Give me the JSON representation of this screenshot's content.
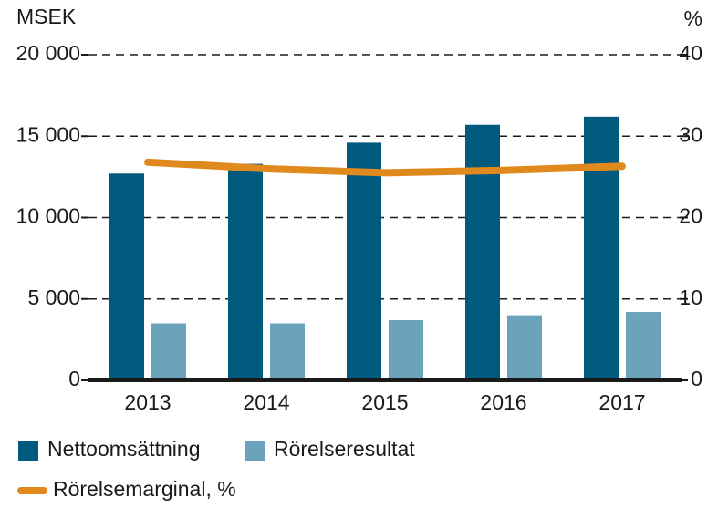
{
  "chart_data": {
    "type": "bar",
    "y_label": "MSEK",
    "y2_label": "%",
    "categories": [
      "2013",
      "2014",
      "2015",
      "2016",
      "2017"
    ],
    "series": [
      {
        "name": "Nettoomsättning",
        "color": "#005a7e",
        "values": [
          12700,
          13300,
          14600,
          15700,
          16200
        ]
      },
      {
        "name": "Rörelseresultat",
        "color": "#6ba3bd",
        "values": [
          3500,
          3500,
          3700,
          4000,
          4200
        ]
      },
      {
        "name": "Rörelsemarginal, %",
        "color": "#e08a1e",
        "type": "line",
        "axis": "y2",
        "values": [
          26.8,
          26.0,
          25.5,
          25.8,
          26.3
        ]
      }
    ],
    "ylim": [
      0,
      20000
    ],
    "yticks": [
      0,
      {
        "value": 5000,
        "label": "5 000"
      },
      {
        "value": 10000,
        "label": "10 000"
      },
      {
        "value": 15000,
        "label": "15 000"
      },
      {
        "value": 20000,
        "label": "20 000"
      }
    ],
    "y2lim": [
      0,
      40
    ],
    "y2ticks": [
      0,
      10,
      20,
      30,
      40
    ],
    "grid": true
  }
}
